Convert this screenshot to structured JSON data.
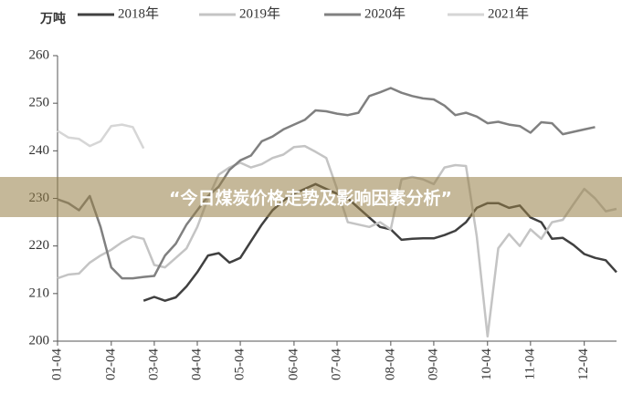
{
  "chart_data": {
    "type": "line",
    "unit_label": "万吨",
    "overlay_text": "“今日煤炭价格走势及影响因素分析”",
    "categories": [
      "01-04",
      null,
      null,
      null,
      null,
      "02-04",
      null,
      null,
      null,
      "03-04",
      null,
      null,
      null,
      "04-04",
      null,
      null,
      null,
      "05-04",
      null,
      null,
      null,
      null,
      "06-04",
      null,
      null,
      null,
      "07-04",
      null,
      null,
      null,
      null,
      "08-04",
      null,
      null,
      null,
      "09-04",
      null,
      null,
      null,
      null,
      "10-04",
      null,
      null,
      null,
      "11-04",
      null,
      null,
      null,
      null,
      "12-04",
      null,
      null,
      null
    ],
    "ylim": [
      200,
      260
    ],
    "yticks": [
      200,
      210,
      220,
      230,
      240,
      250,
      260
    ],
    "series": [
      {
        "name": "2018年",
        "color": "#404040",
        "values": [
          null,
          null,
          null,
          null,
          null,
          null,
          null,
          null,
          208.5,
          209.3,
          208.5,
          209.2,
          211.5,
          214.5,
          218,
          218.5,
          216.5,
          217.5,
          221,
          224.5,
          227.5,
          229.5,
          231,
          232,
          233,
          232,
          231,
          230,
          228,
          226,
          224,
          223.5,
          221.3,
          221.5,
          221.6,
          221.6,
          222.3,
          223.2,
          225,
          228,
          229,
          229,
          228,
          228.5,
          226,
          225,
          221.5,
          221.7,
          220.2,
          218.3,
          217.5,
          217,
          214.5
        ]
      },
      {
        "name": "2019年",
        "color": "#c4c4c4",
        "values": [
          213.2,
          214,
          214.2,
          216.5,
          218,
          219.2,
          220.8,
          222,
          221.5,
          216,
          215.5,
          217.5,
          219.5,
          224,
          230,
          235,
          236.5,
          237.5,
          236.5,
          237.2,
          238.5,
          239.2,
          240.8,
          241,
          239.8,
          238.5,
          232,
          225,
          224.5,
          224,
          225,
          223.5,
          234,
          234.5,
          234,
          233,
          236.5,
          237,
          236.8,
          222,
          201,
          219.5,
          222.5,
          220,
          223.5,
          221.5,
          225,
          225.5,
          228.8,
          232,
          230,
          227.3,
          227.8
        ]
      },
      {
        "name": "2020年",
        "color": "#808080",
        "values": [
          229.8,
          229,
          227.5,
          230.5,
          224,
          215.5,
          213.2,
          213.2,
          213.5,
          213.7,
          218,
          220.5,
          224.5,
          227.5,
          230.5,
          232.5,
          236,
          238,
          239,
          242,
          243,
          244.5,
          245.5,
          246.5,
          248.5,
          248.3,
          247.8,
          247.5,
          248,
          251.5,
          252.3,
          253.2,
          252.2,
          251.5,
          251,
          250.8,
          249.5,
          247.5,
          248,
          247.2,
          245.8,
          246.1,
          245.5,
          245.2,
          243.8,
          246,
          245.8,
          243.5,
          244,
          244.5,
          245,
          null,
          null
        ]
      },
      {
        "name": "2021年",
        "color": "#d6d6d6",
        "values": [
          244.2,
          242.8,
          242.5,
          241,
          242,
          245.2,
          245.5,
          245,
          240.5,
          null,
          null,
          null,
          null,
          null,
          null,
          null,
          null,
          null,
          null,
          null,
          null,
          null,
          null,
          null,
          null,
          null,
          null,
          null,
          null,
          null,
          null,
          null,
          null,
          null,
          null,
          null,
          null,
          null,
          null,
          null,
          null,
          null,
          null,
          null,
          null,
          null,
          null,
          null,
          null,
          null,
          null,
          null,
          null
        ]
      }
    ]
  }
}
